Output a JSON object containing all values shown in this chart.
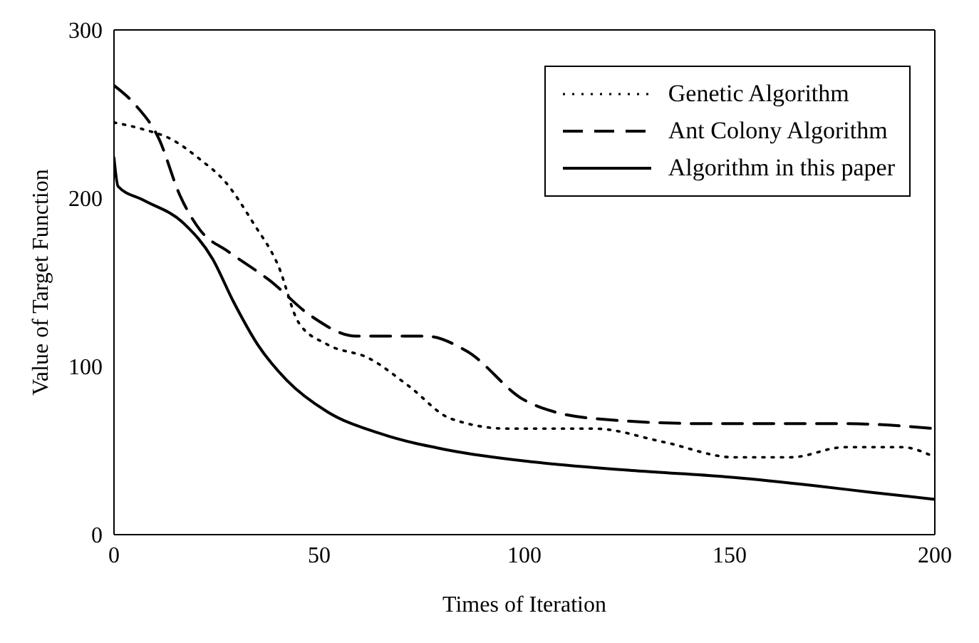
{
  "chart_data": {
    "type": "line",
    "xlabel": "Times of Iteration",
    "ylabel": "Value of Target Function",
    "xlim": [
      0,
      200
    ],
    "xticks": [
      0,
      50,
      100,
      150,
      200
    ],
    "ylim": [
      0,
      300
    ],
    "yticks": [
      0,
      100,
      200,
      300
    ],
    "legend": "top right",
    "marker": "none",
    "series": [
      {
        "name": "Genetic Algorithm",
        "color": "#000000",
        "line_style": "dotted",
        "x": [
          0,
          7,
          14,
          21,
          27,
          34,
          40,
          45,
          52,
          62,
          72,
          82,
          96,
          117,
          134,
          151,
          165,
          178,
          192,
          200
        ],
        "values": [
          245,
          241,
          235,
          223,
          210,
          185,
          160,
          126,
          113,
          105,
          88,
          69,
          63,
          63,
          55,
          46,
          46,
          52,
          52,
          46
        ]
      },
      {
        "name": "Ant Colony Algorithm",
        "color": "#000000",
        "line_style": "dashed",
        "x": [
          0,
          5,
          11,
          16,
          21,
          28,
          38,
          48,
          59,
          76,
          86,
          100,
          117,
          144,
          178,
          200
        ],
        "values": [
          267,
          256,
          235,
          202,
          181,
          168,
          151,
          130,
          118,
          118,
          109,
          80,
          69,
          66,
          66,
          63
        ]
      },
      {
        "name": "Algorithm in this paper",
        "color": "#000000",
        "line_style": "solid",
        "x": [
          0,
          1,
          7,
          17,
          24,
          29,
          35,
          42,
          52,
          65,
          82,
          103,
          127,
          151,
          171,
          185,
          200
        ],
        "values": [
          224,
          207,
          199,
          185,
          164,
          139,
          113,
          92,
          73,
          60,
          50,
          43,
          38,
          34,
          29,
          25,
          21
        ]
      }
    ]
  }
}
